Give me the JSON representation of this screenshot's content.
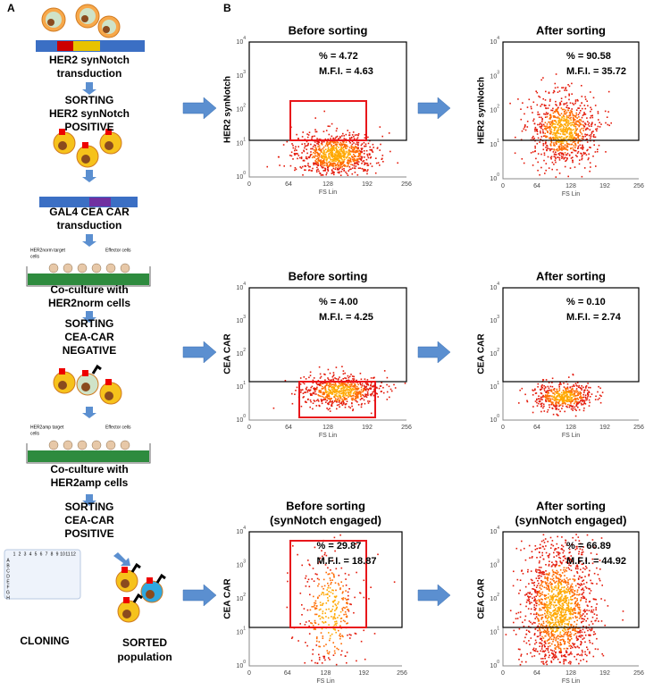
{
  "panel_a": {
    "label": "A",
    "steps": [
      {
        "lines": [
          "HER2 synNotch",
          "transduction"
        ]
      },
      {
        "lines": [
          "SORTING",
          "HER2 synNotch",
          "POSITIVE"
        ]
      },
      {
        "lines": [
          "GAL4 CEA CAR",
          "transduction"
        ]
      },
      {
        "lines": [
          "Co-culture with",
          "HER2norm cells"
        ]
      },
      {
        "lines": [
          "SORTING",
          "CEA-CAR",
          "NEGATIVE"
        ]
      },
      {
        "lines": [
          "Co-culture with",
          "HER2amp cells"
        ]
      },
      {
        "lines": [
          "SORTING",
          "CEA-CAR",
          "POSITIVE"
        ]
      }
    ],
    "dish_1": {
      "target": [
        "HER2norm target",
        "cells"
      ],
      "effector": "Effector cells"
    },
    "dish_2": {
      "target": [
        "HER2amp target",
        "cells"
      ],
      "effector": "Effector cells"
    },
    "plate_columns": [
      "1",
      "2",
      "3",
      "4",
      "5",
      "6",
      "7",
      "8",
      "9",
      "10",
      "11",
      "12"
    ],
    "plate_rows": [
      "A",
      "B",
      "C",
      "D",
      "E",
      "F",
      "G",
      "H"
    ],
    "cloning": "CLONING",
    "sorted": [
      "SORTED",
      "population"
    ]
  },
  "panel_b": {
    "label": "B",
    "axis": {
      "x_label": "FS Lin",
      "x_ticks": [
        "0",
        "64",
        "128",
        "192",
        "256"
      ],
      "y_ticks": [
        {
          "base": "10",
          "exponent": "0"
        },
        {
          "base": "10",
          "exponent": "1"
        },
        {
          "base": "10",
          "exponent": "2"
        },
        {
          "base": "10",
          "exponent": "3"
        },
        {
          "base": "10",
          "exponent": "4"
        }
      ]
    },
    "plots": [
      {
        "title": [
          "Before sorting"
        ],
        "y_label": "HER2 synNotch",
        "stats": [
          "% = 4.72",
          "M.F.I. = 4.63"
        ]
      },
      {
        "title": [
          "After sorting"
        ],
        "y_label": "HER2 synNotch",
        "stats": [
          "% = 90.58",
          "M.F.I. = 35.72"
        ]
      },
      {
        "title": [
          "Before sorting"
        ],
        "y_label": "CEA CAR",
        "stats": [
          "% = 4.00",
          "M.F.I. = 4.25"
        ]
      },
      {
        "title": [
          "After sorting"
        ],
        "y_label": "CEA CAR",
        "stats": [
          "% = 0.10",
          "M.F.I. = 2.74"
        ]
      },
      {
        "title": [
          "Before sorting",
          "(synNotch engaged)"
        ],
        "y_label": "CEA CAR",
        "stats": [
          "% = 29.87",
          "M.F.I. = 18.87"
        ]
      },
      {
        "title": [
          "After sorting",
          "(synNotch engaged)"
        ],
        "y_label": "CEA CAR",
        "stats": [
          "% = 66.89",
          "M.F.I. = 44.92"
        ]
      }
    ]
  }
}
